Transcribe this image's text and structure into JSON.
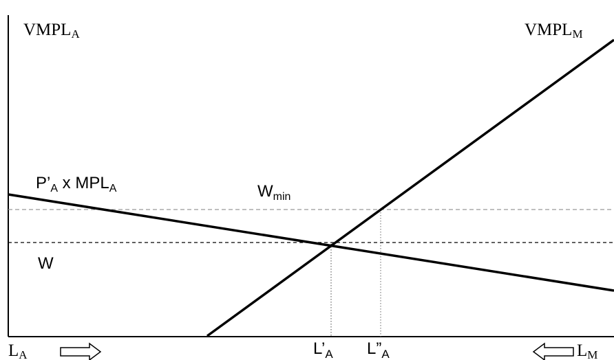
{
  "axes": {
    "left_label": "VMPL",
    "left_label_sub": "A",
    "right_label": "VMPL",
    "right_label_sub": "M"
  },
  "curves": {
    "agri_label_main": "P’",
    "agri_label_sub1": "A",
    "agri_label_mid": " x MPL",
    "agri_label_sub2": "A"
  },
  "wages": {
    "w_min_main": "W",
    "w_min_sub": "min",
    "w_label": "W"
  },
  "bottom_axis": {
    "la_main": "L",
    "la_sub": "A",
    "lpa_main": "L’",
    "lpa_sub": "A",
    "lppa_main": "L”",
    "lppa_sub": "A",
    "lm_main": "L",
    "lm_sub": "M"
  }
}
